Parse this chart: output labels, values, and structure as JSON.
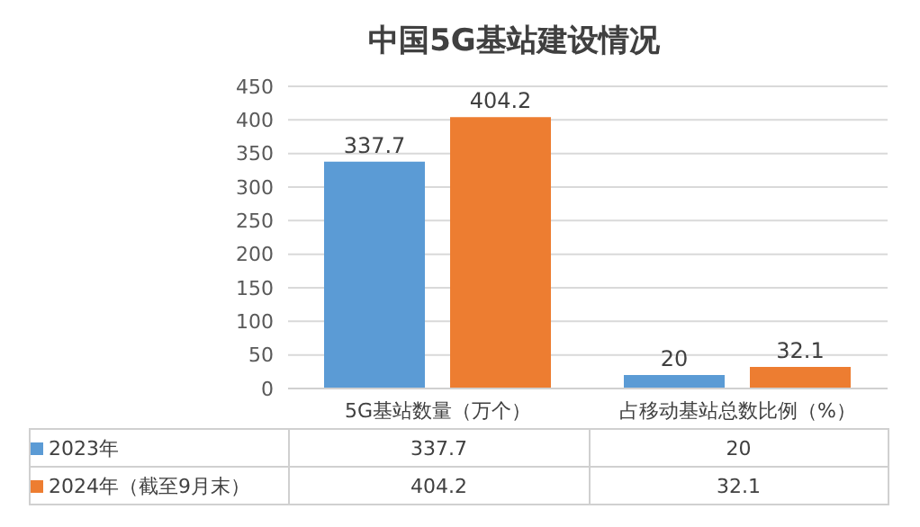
{
  "chart_data": {
    "type": "bar",
    "title": "中国5G基站建设情况",
    "categories": [
      "5G基站数量（万个）",
      "占移动基站总数比例（%）"
    ],
    "series": [
      {
        "name": "2023年",
        "color": "#5b9bd5",
        "values": [
          337.7,
          20
        ],
        "value_labels": [
          "337.7",
          "20"
        ]
      },
      {
        "name": "2024年（截至9月末）",
        "color": "#ed7d31",
        "values": [
          404.2,
          32.1
        ],
        "value_labels": [
          "404.2",
          "32.1"
        ]
      }
    ],
    "ylim": [
      0,
      450
    ],
    "yticks": [
      0,
      50,
      100,
      150,
      200,
      250,
      300,
      350,
      400,
      450
    ],
    "grid": "y",
    "legend": "bottom",
    "annotations": [
      "337.7",
      "20",
      "404.2",
      "32.1"
    ]
  }
}
